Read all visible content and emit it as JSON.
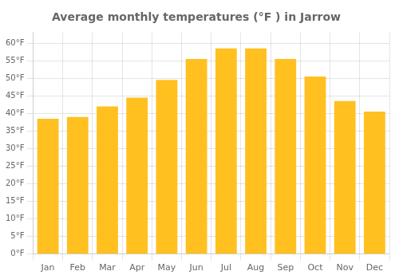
{
  "chart_data": {
    "type": "bar",
    "title": "Average monthly temperatures (°F ) in Jarrow",
    "categories": [
      "Jan",
      "Feb",
      "Mar",
      "Apr",
      "May",
      "Jun",
      "Jul",
      "Aug",
      "Sep",
      "Oct",
      "Nov",
      "Dec"
    ],
    "values": [
      38.5,
      39.0,
      42.0,
      44.5,
      49.5,
      55.5,
      58.5,
      58.5,
      55.5,
      50.5,
      43.5,
      40.5
    ],
    "color": "#FFC020",
    "ylim": [
      0,
      63
    ],
    "yticks": [
      {
        "value": 0,
        "label": "0°F"
      },
      {
        "value": 5,
        "label": "5°F"
      },
      {
        "value": 10,
        "label": "10°F"
      },
      {
        "value": 15,
        "label": "15°F"
      },
      {
        "value": 20,
        "label": "20°F"
      },
      {
        "value": 25,
        "label": "25°F"
      },
      {
        "value": 30,
        "label": "30°F"
      },
      {
        "value": 35,
        "label": "35°F"
      },
      {
        "value": 40,
        "label": "40°F"
      },
      {
        "value": 45,
        "label": "45°F"
      },
      {
        "value": 50,
        "label": "50°F"
      },
      {
        "value": 55,
        "label": "55°F"
      },
      {
        "value": 60,
        "label": "60°F"
      }
    ],
    "grid": true
  }
}
